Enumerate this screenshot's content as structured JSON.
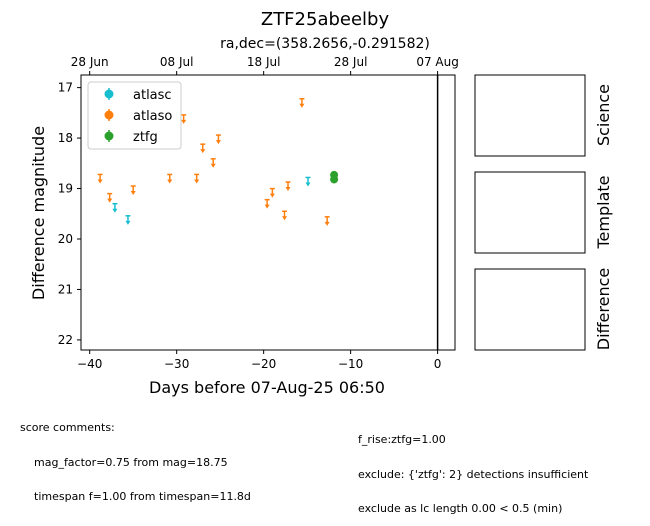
{
  "chart_data": {
    "type": "scatter",
    "title": "ZTF25abeelby",
    "subtitle": "ra,dec=(358.2656,-0.291582)",
    "xlabel": "Days before 07-Aug-25 06:50",
    "ylabel": "Difference magnitude",
    "xlim": [
      -41,
      2
    ],
    "ylim": [
      22.2,
      16.75
    ],
    "y_inverted": true,
    "x_ticks": [
      -40,
      -30,
      -20,
      -10,
      0
    ],
    "y_ticks": [
      17,
      18,
      19,
      20,
      21,
      22
    ],
    "top_axis_ticks": [
      {
        "x": -40,
        "label": "28 Jun"
      },
      {
        "x": -30,
        "label": "08 Jul"
      },
      {
        "x": -20,
        "label": "18 Jul"
      },
      {
        "x": -10,
        "label": "28 Jul"
      },
      {
        "x": 0,
        "label": "07 Aug"
      }
    ],
    "vline_x": 0,
    "grid": false,
    "legend_position": "top-left",
    "series": [
      {
        "name": "atlasc",
        "color": "#17becf",
        "marker": "upper-limit-arrow",
        "points": [
          {
            "x": -37.1,
            "y": 19.38
          },
          {
            "x": -35.6,
            "y": 19.62
          },
          {
            "x": -14.9,
            "y": 18.86
          }
        ]
      },
      {
        "name": "atlaso",
        "color": "#ff7f0e",
        "marker": "upper-limit-arrow",
        "points": [
          {
            "x": -38.8,
            "y": 18.8
          },
          {
            "x": -37.7,
            "y": 19.18
          },
          {
            "x": -35.0,
            "y": 19.03
          },
          {
            "x": -30.8,
            "y": 18.8
          },
          {
            "x": -29.2,
            "y": 17.62
          },
          {
            "x": -27.7,
            "y": 18.8
          },
          {
            "x": -27.0,
            "y": 18.2
          },
          {
            "x": -25.8,
            "y": 18.49
          },
          {
            "x": -25.2,
            "y": 18.02
          },
          {
            "x": -19.6,
            "y": 19.3
          },
          {
            "x": -19.0,
            "y": 19.08
          },
          {
            "x": -17.6,
            "y": 19.53
          },
          {
            "x": -17.2,
            "y": 18.95
          },
          {
            "x": -15.6,
            "y": 17.3
          },
          {
            "x": -12.7,
            "y": 19.64
          }
        ]
      },
      {
        "name": "ztfg",
        "color": "#2ca02c",
        "marker": "circle",
        "points": [
          {
            "x": -11.9,
            "y": 18.73,
            "err": 0.05
          },
          {
            "x": -11.9,
            "y": 18.82,
            "err": 0.05
          }
        ]
      }
    ]
  },
  "panels": [
    {
      "label": "Science"
    },
    {
      "label": "Template"
    },
    {
      "label": "Difference"
    }
  ],
  "score_comments": {
    "heading": "score comments:",
    "left": [
      "mag_factor=0.75 from mag=18.75",
      "timespan f=1.00 from timespan=11.8d"
    ],
    "right": [
      "f_rise:ztfg=1.00",
      "exclude: {'ztfg': 2} detections insufficient",
      "exclude as lc length 0.00 < 0.5 (min)"
    ]
  }
}
